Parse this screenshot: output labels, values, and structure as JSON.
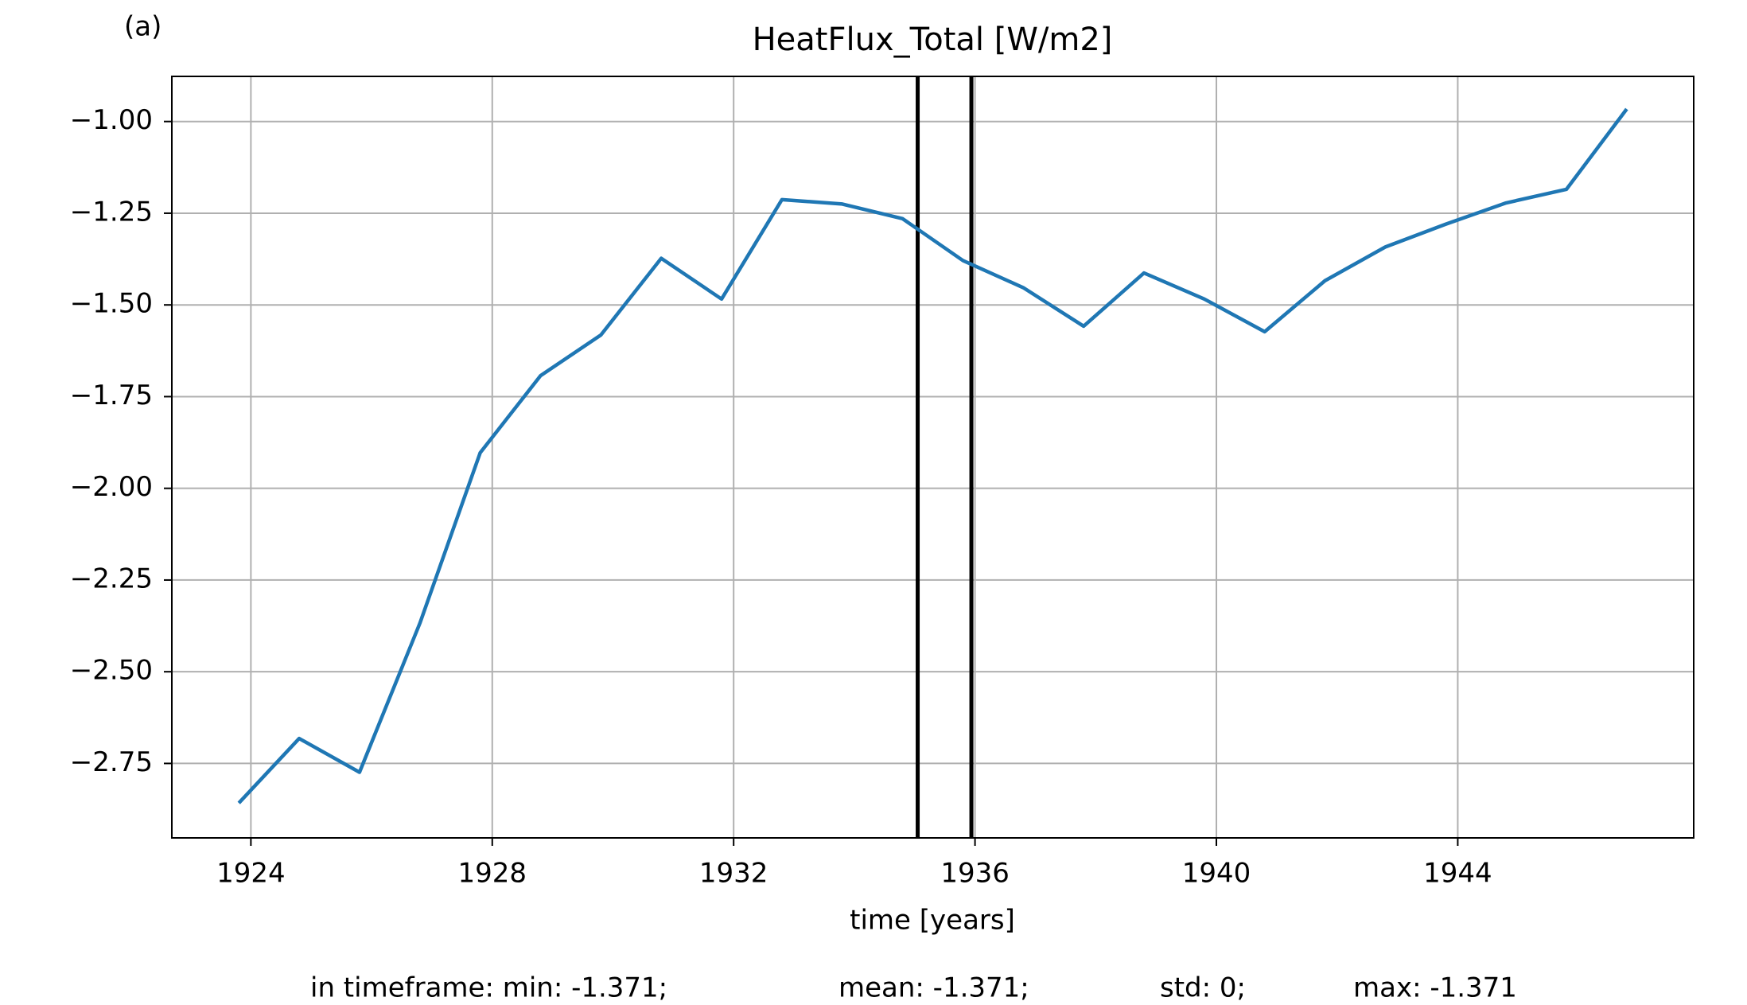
{
  "chart_data": {
    "type": "line",
    "panel_label": "(a)",
    "title": "HeatFlux_Total [W/m2]",
    "x_label": "time [years]",
    "footer": [
      "in timeframe: min: -1.371;",
      "mean: -1.371;",
      "std: 0;",
      "max: -1.371"
    ],
    "x": [
      1923.8,
      1924.8,
      1925.8,
      1926.8,
      1927.8,
      1928.8,
      1929.8,
      1930.8,
      1931.8,
      1932.8,
      1933.8,
      1934.8,
      1935.8,
      1936.8,
      1937.8,
      1938.8,
      1939.8,
      1940.8,
      1941.8,
      1942.8,
      1943.8,
      1944.8,
      1945.8,
      1946.8
    ],
    "series": [
      {
        "color": "#1f77b4",
        "values": [
          -2.858,
          -2.682,
          -2.774,
          -2.368,
          -1.903,
          -1.693,
          -1.582,
          -1.373,
          -1.484,
          -1.213,
          -1.225,
          -1.265,
          -1.379,
          -1.453,
          -1.558,
          -1.413,
          -1.484,
          -1.573,
          -1.434,
          -1.342,
          -1.28,
          -1.222,
          -1.185,
          -0.966
        ]
      }
    ],
    "vlines": [
      1935.05,
      1935.94
    ],
    "vline_color": "#000000",
    "xlim": [
      1922.69,
      1947.91
    ],
    "ylim": [
      -2.953,
      -0.877
    ],
    "xticks": [
      1924,
      1928,
      1932,
      1936,
      1940,
      1944
    ],
    "yticks": [
      {
        "value": -2.75,
        "label": "−2.75"
      },
      {
        "value": -2.5,
        "label": "−2.50"
      },
      {
        "value": -2.25,
        "label": "−2.25"
      },
      {
        "value": -2.0,
        "label": "−2.00"
      },
      {
        "value": -1.75,
        "label": "−1.75"
      },
      {
        "value": -1.5,
        "label": "−1.50"
      },
      {
        "value": -1.25,
        "label": "−1.25"
      },
      {
        "value": -1.0,
        "label": "−1.00"
      }
    ],
    "grid": true
  }
}
